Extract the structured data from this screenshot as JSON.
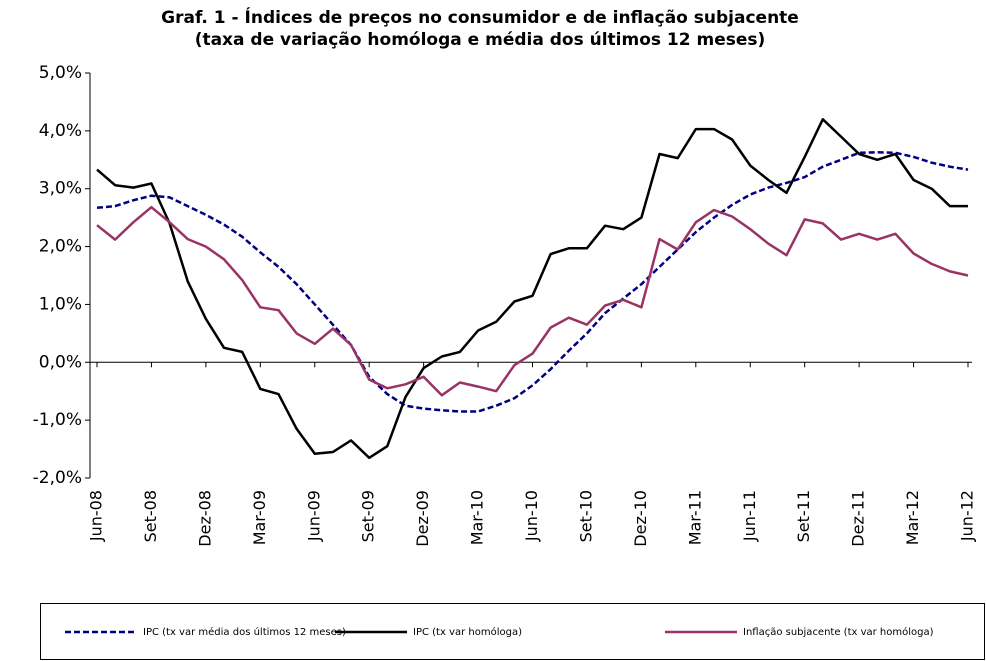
{
  "chart_data": {
    "type": "line",
    "title": "Graf. 1 - Índices de preços no consumidor e de inflação subjacente",
    "subtitle": "(taxa de variação homóloga e média dos últimos 12 meses)",
    "categories": [
      "Jun-08",
      null,
      null,
      "Set-08",
      null,
      null,
      "Dez-08",
      null,
      null,
      "Mar-09",
      null,
      null,
      "Jun-09",
      null,
      null,
      "Set-09",
      null,
      null,
      "Dez-09",
      null,
      null,
      "Mar-10",
      null,
      null,
      "Jun-10",
      null,
      null,
      "Set-10",
      null,
      null,
      "Dez-10",
      null,
      null,
      "Mar-11",
      null,
      null,
      "Jun-11",
      null,
      null,
      "Set-11",
      null,
      null,
      "Dez-11",
      null,
      null,
      "Mar-12",
      null,
      null,
      "Jun-12"
    ],
    "ylim": [
      -2,
      5
    ],
    "yticks": [
      {
        "value": -2,
        "label": "-2,0%"
      },
      {
        "value": -1,
        "label": "-1,0%"
      },
      {
        "value": 0,
        "label": "0,0%"
      },
      {
        "value": 1,
        "label": "1,0%"
      },
      {
        "value": 2,
        "label": "2,0%"
      },
      {
        "value": 3,
        "label": "3,0%"
      },
      {
        "value": 4,
        "label": "4,0%"
      },
      {
        "value": 5,
        "label": "5,0%"
      }
    ],
    "series": [
      {
        "name": "IPC (tx var média dos últimos 12 meses)",
        "color": "#000080",
        "dash": true,
        "values": [
          2.67,
          2.7,
          2.8,
          2.88,
          2.85,
          2.7,
          2.55,
          2.38,
          2.17,
          1.9,
          1.65,
          1.35,
          1.0,
          0.65,
          0.3,
          -0.25,
          -0.55,
          -0.75,
          -0.8,
          -0.83,
          -0.85,
          -0.85,
          -0.75,
          -0.62,
          -0.4,
          -0.12,
          0.2,
          0.5,
          0.85,
          1.1,
          1.35,
          1.65,
          1.95,
          2.25,
          2.5,
          2.72,
          2.9,
          3.02,
          3.1,
          3.2,
          3.38,
          3.5,
          3.62,
          3.63,
          3.62,
          3.55,
          3.45,
          3.38,
          3.33
        ]
      },
      {
        "name": "IPC (tx var homóloga)",
        "color": "#000000",
        "dash": false,
        "values": [
          3.33,
          3.06,
          3.02,
          3.09,
          2.4,
          1.4,
          0.75,
          0.25,
          0.18,
          -0.46,
          -0.55,
          -1.15,
          -1.58,
          -1.55,
          -1.35,
          -1.65,
          -1.45,
          -0.6,
          -0.1,
          0.1,
          0.18,
          0.55,
          0.7,
          1.05,
          1.15,
          1.87,
          1.97,
          1.97,
          2.36,
          2.3,
          2.5,
          3.6,
          3.53,
          4.03,
          4.03,
          3.85,
          3.4,
          3.15,
          2.93,
          3.55,
          4.2,
          3.9,
          3.6,
          3.5,
          3.6,
          3.15,
          3.0,
          2.7,
          2.7
        ]
      },
      {
        "name": "Inflação subjacente (tx var homóloga)",
        "color": "#993366",
        "dash": false,
        "values": [
          2.37,
          2.12,
          2.42,
          2.68,
          2.42,
          2.13,
          2.0,
          1.78,
          1.42,
          0.95,
          0.9,
          0.5,
          0.32,
          0.58,
          0.3,
          -0.3,
          -0.45,
          -0.38,
          -0.25,
          -0.57,
          -0.35,
          -0.42,
          -0.5,
          -0.05,
          0.15,
          0.6,
          0.77,
          0.65,
          0.98,
          1.08,
          0.95,
          2.13,
          1.95,
          2.42,
          2.63,
          2.52,
          2.3,
          2.05,
          1.85,
          2.47,
          2.4,
          2.12,
          2.22,
          2.12,
          2.22,
          1.88,
          1.7,
          1.57,
          1.5
        ]
      }
    ]
  }
}
